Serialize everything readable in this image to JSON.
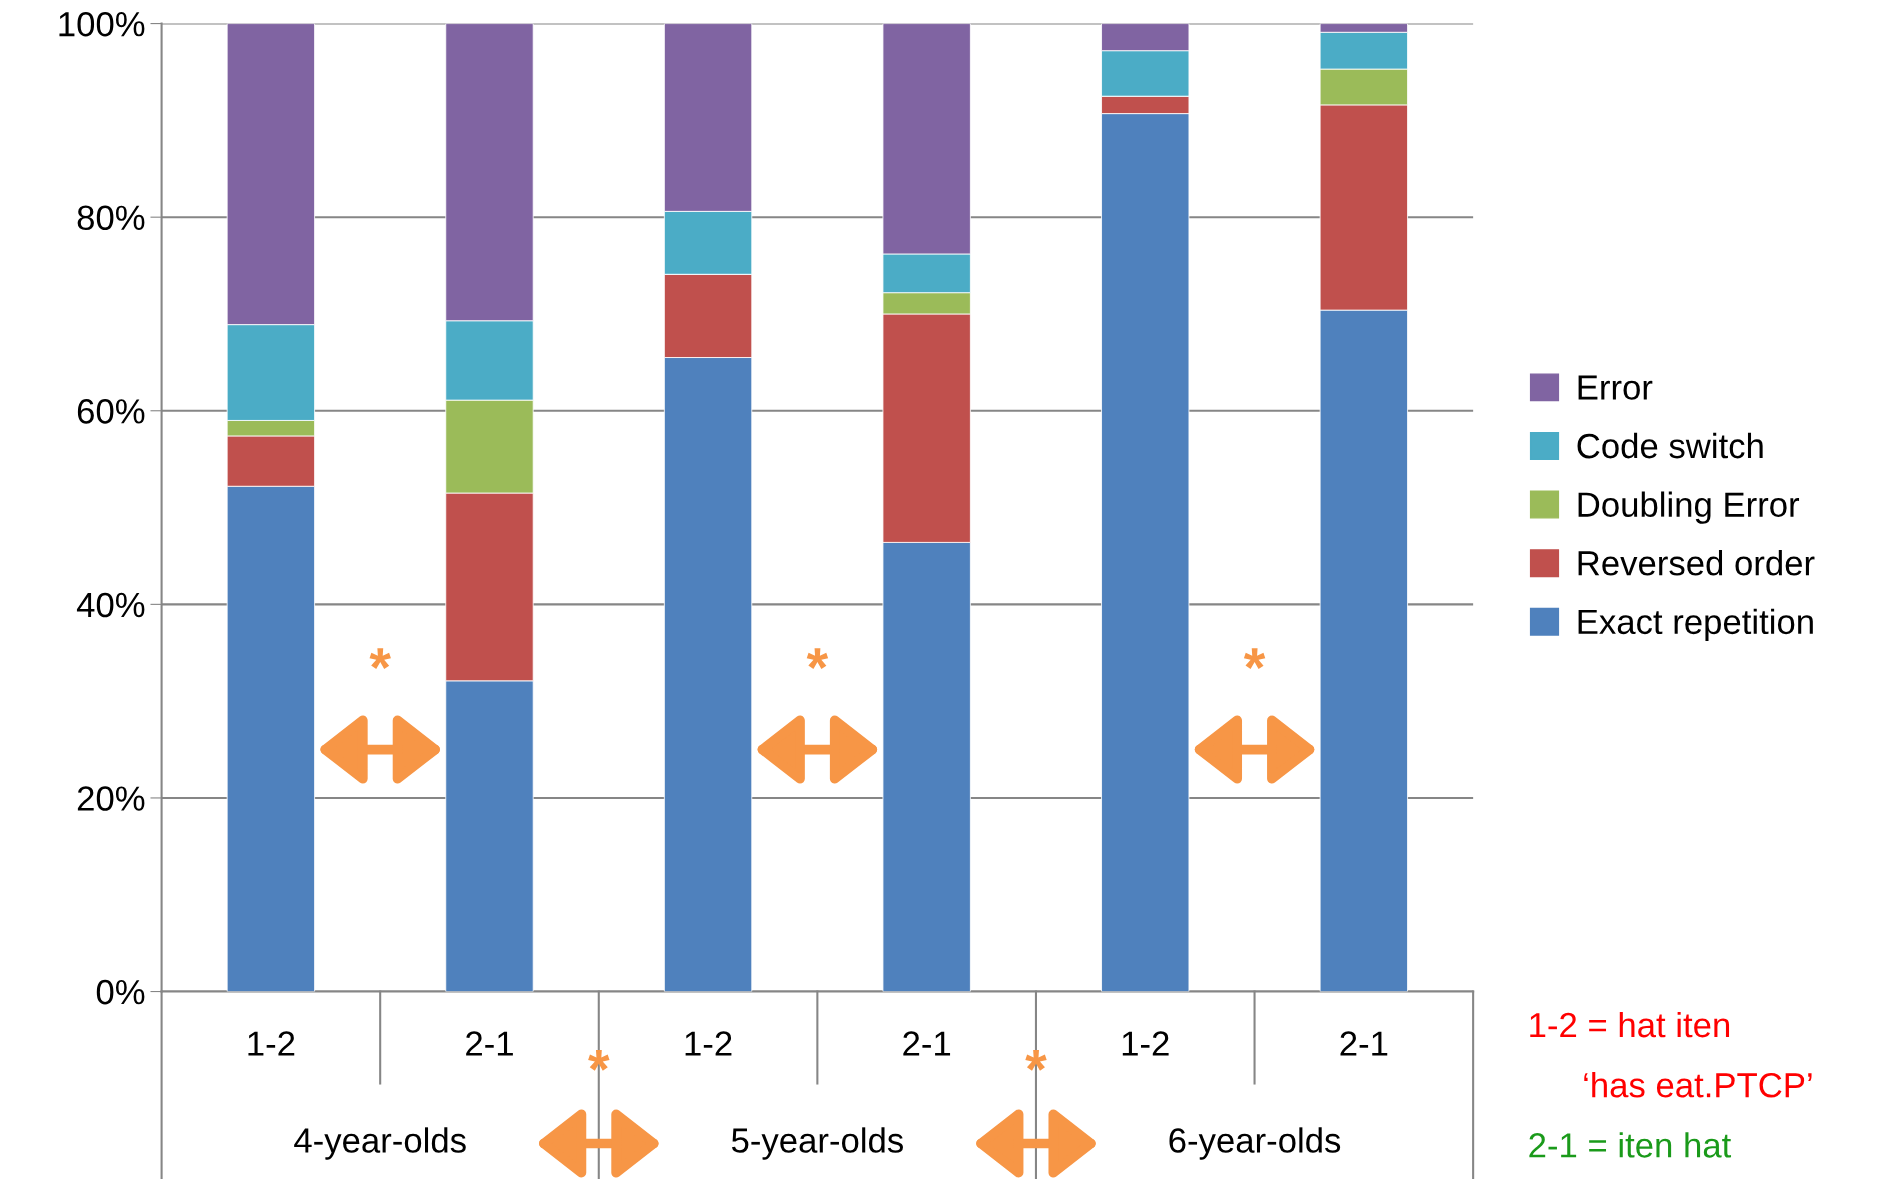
{
  "chart_data": {
    "type": "bar",
    "stacked": true,
    "categories": [
      "1-2",
      "2-1",
      "1-2",
      "2-1",
      "1-2",
      "2-1"
    ],
    "series": [
      {
        "name": "Exact repetition",
        "color": "#4f81bd",
        "values": [
          52.2,
          32.1,
          65.5,
          46.4,
          90.7,
          70.4
        ]
      },
      {
        "name": "Reversed order",
        "color": "#c0504d",
        "values": [
          5.2,
          19.4,
          8.6,
          23.6,
          1.8,
          21.2
        ]
      },
      {
        "name": "Doubling Error",
        "color": "#9bbb59",
        "values": [
          1.6,
          9.6,
          0,
          2.2,
          0,
          3.7
        ]
      },
      {
        "name": "Code switch",
        "color": "#4bacc6",
        "values": [
          9.9,
          8.2,
          6.5,
          4.0,
          4.7,
          3.8
        ]
      },
      {
        "name": "Error",
        "color": "#8064a2",
        "values": [
          31.1,
          30.7,
          19.4,
          23.8,
          2.8,
          0.9
        ]
      }
    ],
    "ylim": [
      0,
      100
    ],
    "yticks": [
      {
        "value": 0,
        "label": "0%"
      },
      {
        "value": 20,
        "label": "20%"
      },
      {
        "value": 40,
        "label": "40%"
      },
      {
        "value": 60,
        "label": "60%"
      },
      {
        "value": 80,
        "label": "80%"
      },
      {
        "value": 100,
        "label": "100%"
      }
    ],
    "grid": "y",
    "legend": "right",
    "annotations": [
      "4-year-olds",
      "5-year-olds",
      "6-year-olds",
      "*",
      "*",
      "*",
      "*",
      "*",
      "1-2 = hat iten",
      "‘has eat.PTCP’",
      "2-1 = iten hat"
    ]
  }
}
